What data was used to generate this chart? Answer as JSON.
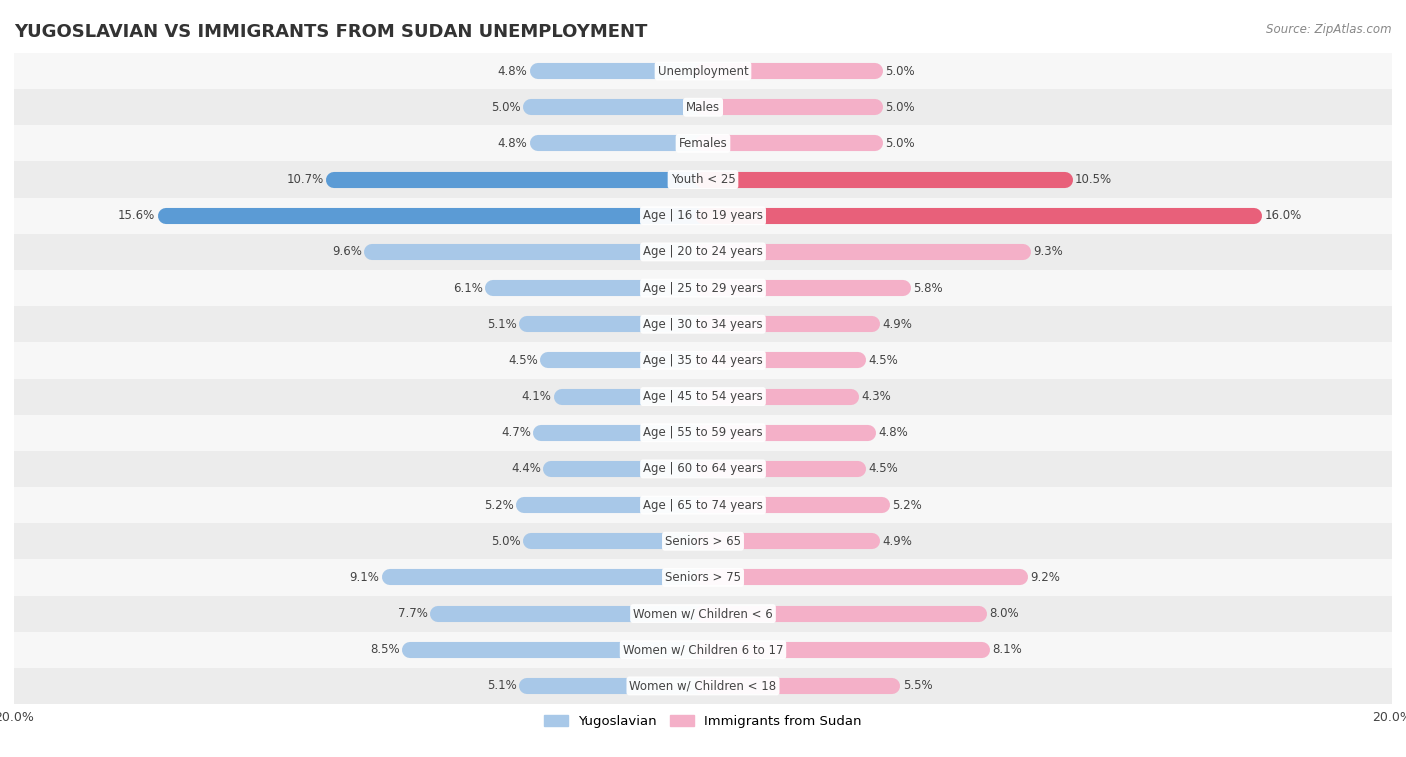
{
  "title": "YUGOSLAVIAN VS IMMIGRANTS FROM SUDAN UNEMPLOYMENT",
  "source": "Source: ZipAtlas.com",
  "categories": [
    "Unemployment",
    "Males",
    "Females",
    "Youth < 25",
    "Age | 16 to 19 years",
    "Age | 20 to 24 years",
    "Age | 25 to 29 years",
    "Age | 30 to 34 years",
    "Age | 35 to 44 years",
    "Age | 45 to 54 years",
    "Age | 55 to 59 years",
    "Age | 60 to 64 years",
    "Age | 65 to 74 years",
    "Seniors > 65",
    "Seniors > 75",
    "Women w/ Children < 6",
    "Women w/ Children 6 to 17",
    "Women w/ Children < 18"
  ],
  "yugoslav_values": [
    4.8,
    5.0,
    4.8,
    10.7,
    15.6,
    9.6,
    6.1,
    5.1,
    4.5,
    4.1,
    4.7,
    4.4,
    5.2,
    5.0,
    9.1,
    7.7,
    8.5,
    5.1
  ],
  "sudan_values": [
    5.0,
    5.0,
    5.0,
    10.5,
    16.0,
    9.3,
    5.8,
    4.9,
    4.5,
    4.3,
    4.8,
    4.5,
    5.2,
    4.9,
    9.2,
    8.0,
    8.1,
    5.5
  ],
  "yugoslav_color": "#a8c8e8",
  "sudan_color": "#f4b0c8",
  "yugoslav_highlight_color": "#5b9bd5",
  "sudan_highlight_color": "#e8607a",
  "highlight_rows": [
    3,
    4
  ],
  "row_bg_light": "#f0f0f0",
  "row_bg_dark": "#e0e0e0",
  "xlim": 20.0,
  "legend_labels": [
    "Yugoslavian",
    "Immigrants from Sudan"
  ],
  "bar_height": 0.45,
  "label_fontsize": 8.5,
  "value_fontsize": 8.5,
  "title_fontsize": 13
}
